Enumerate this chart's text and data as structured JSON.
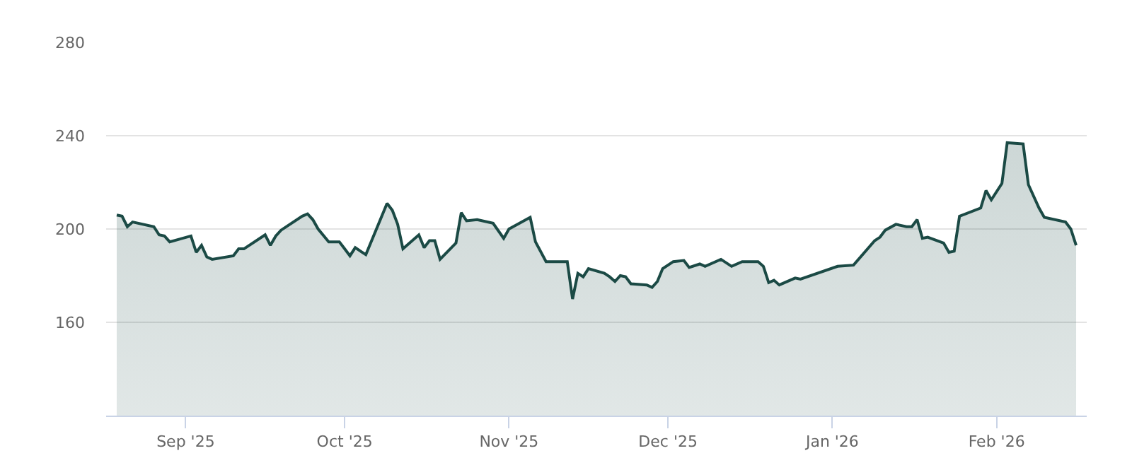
{
  "chart_data": {
    "type": "area",
    "x": [
      "2025-08-19",
      "2025-08-20",
      "2025-08-21",
      "2025-08-22",
      "2025-08-26",
      "2025-08-27",
      "2025-08-28",
      "2025-08-29",
      "2025-09-02",
      "2025-09-03",
      "2025-09-04",
      "2025-09-05",
      "2025-09-06",
      "2025-09-10",
      "2025-09-11",
      "2025-09-12",
      "2025-09-16",
      "2025-09-17",
      "2025-09-18",
      "2025-09-19",
      "2025-09-23",
      "2025-09-24",
      "2025-09-25",
      "2025-09-26",
      "2025-09-28",
      "2025-09-30",
      "2025-10-01",
      "2025-10-02",
      "2025-10-03",
      "2025-10-05",
      "2025-10-09",
      "2025-10-10",
      "2025-10-11",
      "2025-10-12",
      "2025-10-15",
      "2025-10-16",
      "2025-10-17",
      "2025-10-18",
      "2025-10-19",
      "2025-10-22",
      "2025-10-23",
      "2025-10-24",
      "2025-10-26",
      "2025-10-29",
      "2025-10-31",
      "2025-11-01",
      "2025-11-05",
      "2025-11-06",
      "2025-11-08",
      "2025-11-12",
      "2025-11-13",
      "2025-11-14",
      "2025-11-15",
      "2025-11-16",
      "2025-11-19",
      "2025-11-20",
      "2025-11-21",
      "2025-11-22",
      "2025-11-23",
      "2025-11-24",
      "2025-11-27",
      "2025-11-28",
      "2025-11-29",
      "2025-11-30",
      "2025-12-02",
      "2025-12-04",
      "2025-12-05",
      "2025-12-07",
      "2025-12-08",
      "2025-12-11",
      "2025-12-13",
      "2025-12-15",
      "2025-12-18",
      "2025-12-19",
      "2025-12-20",
      "2025-12-21",
      "2025-12-22",
      "2025-12-25",
      "2025-12-26",
      "2026-01-02",
      "2026-01-05",
      "2026-01-09",
      "2026-01-10",
      "2026-01-11",
      "2026-01-13",
      "2026-01-15",
      "2026-01-16",
      "2026-01-17",
      "2026-01-18",
      "2026-01-19",
      "2026-01-22",
      "2026-01-23",
      "2026-01-24",
      "2026-01-25",
      "2026-01-29",
      "2026-01-30",
      "2026-01-31",
      "2026-02-02",
      "2026-02-03",
      "2026-02-06",
      "2026-02-07",
      "2026-02-09",
      "2026-02-10",
      "2026-02-14",
      "2026-02-15",
      "2026-02-16"
    ],
    "series": [
      {
        "color": "#1b4a45",
        "values": [
          206,
          205.5,
          201,
          203,
          201,
          197.5,
          197,
          194.5,
          197,
          190,
          193,
          188,
          187,
          188.5,
          191.5,
          191.5,
          197.5,
          193,
          197,
          199.5,
          205.5,
          206.5,
          204,
          200,
          194.5,
          194.5,
          191.5,
          188.5,
          192,
          189,
          211,
          208,
          202,
          191.5,
          197.5,
          192,
          195,
          195,
          187,
          194,
          207,
          203.5,
          204,
          202.5,
          196,
          200,
          205,
          194.5,
          186,
          186,
          170,
          181,
          179.5,
          183,
          181,
          179.5,
          177.5,
          180,
          179.5,
          176.5,
          176,
          175,
          177.5,
          183,
          186,
          186.5,
          183.5,
          185,
          184,
          187,
          184,
          186,
          186,
          184,
          177,
          178,
          176,
          179,
          178.5,
          184,
          184.5,
          195,
          196.5,
          199.5,
          202,
          201,
          201,
          204,
          196,
          196.5,
          194,
          190,
          190.5,
          205.5,
          209,
          216.5,
          212.5,
          219.5,
          237,
          236.5,
          219,
          209,
          205,
          203,
          200,
          193
        ]
      }
    ],
    "xlim": [
      "2025-08-17",
      "2026-02-18"
    ],
    "xticks": [
      {
        "value": "2025-09-01",
        "label": "Sep '25"
      },
      {
        "value": "2025-10-01",
        "label": "Oct '25"
      },
      {
        "value": "2025-11-01",
        "label": "Nov '25"
      },
      {
        "value": "2025-12-01",
        "label": "Dec '25"
      },
      {
        "value": "2026-01-01",
        "label": "Jan '26"
      },
      {
        "value": "2026-02-01",
        "label": "Feb '26"
      }
    ],
    "ylim": [
      120,
      280
    ],
    "yticks": [
      160,
      200,
      240,
      280
    ],
    "grid": "y"
  }
}
